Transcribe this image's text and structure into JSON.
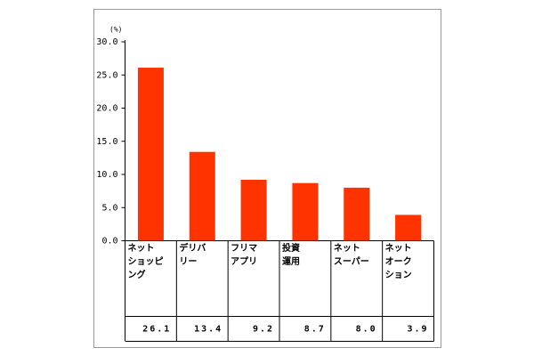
{
  "chart_data": {
    "type": "bar",
    "y_label": "(%)",
    "categories": [
      "ネット\nショッピ\nング",
      "デリバ\nリー",
      "フリマ\nアプリ",
      "投資\n運用",
      "ネット\nスーパー",
      "ネット\nオーク\nション"
    ],
    "values": [
      26.1,
      13.4,
      9.2,
      8.7,
      8.0,
      3.9
    ],
    "value_labels": [
      "26.1",
      "13.4",
      "9.2",
      "8.7",
      "8.0",
      "3.9"
    ],
    "color": "#ff3300",
    "ylim": [
      0,
      30
    ],
    "yticks": [
      {
        "value": 0,
        "label": "0.0"
      },
      {
        "value": 5,
        "label": "5.0"
      },
      {
        "value": 10,
        "label": "10.0"
      },
      {
        "value": 15,
        "label": "15.0"
      },
      {
        "value": 20,
        "label": "20.0"
      },
      {
        "value": 25,
        "label": "25.0"
      },
      {
        "value": 30,
        "label": "30.0"
      }
    ]
  }
}
